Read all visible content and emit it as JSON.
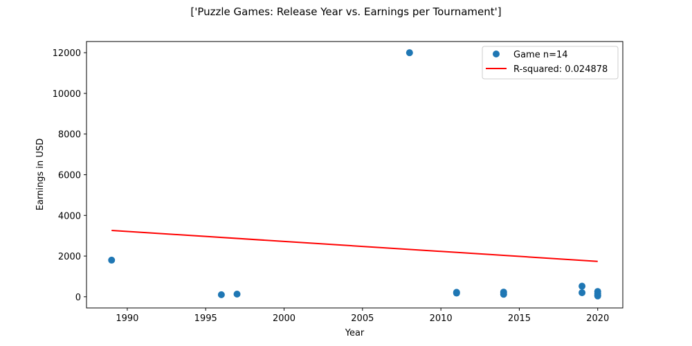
{
  "chart_data": {
    "type": "scatter",
    "title": "['Puzzle Games: Release Year vs. Earnings per Tournament']",
    "xlabel": "Year",
    "ylabel": "Earnings in USD",
    "xlim": [
      1987.4,
      2021.6
    ],
    "ylim": [
      -550,
      12550
    ],
    "xticks": [
      1990,
      1995,
      2000,
      2005,
      2010,
      2015,
      2020
    ],
    "yticks": [
      0,
      2000,
      4000,
      6000,
      8000,
      10000,
      12000
    ],
    "legend_position": "upper right",
    "grid": false,
    "series": [
      {
        "name": "Game n=14",
        "kind": "scatter",
        "color": "#1f77b4",
        "points": [
          {
            "x": 1989,
            "y": 1800
          },
          {
            "x": 1996,
            "y": 100
          },
          {
            "x": 1997,
            "y": 130
          },
          {
            "x": 2008,
            "y": 12000
          },
          {
            "x": 2011,
            "y": 220
          },
          {
            "x": 2011,
            "y": 180
          },
          {
            "x": 2014,
            "y": 230
          },
          {
            "x": 2014,
            "y": 120
          },
          {
            "x": 2019,
            "y": 520
          },
          {
            "x": 2019,
            "y": 200
          },
          {
            "x": 2020,
            "y": 260
          },
          {
            "x": 2020,
            "y": 160
          },
          {
            "x": 2020,
            "y": 90
          },
          {
            "x": 2020,
            "y": 40
          }
        ]
      },
      {
        "name": "R-squared: 0.024878",
        "kind": "line",
        "color": "#ff0000",
        "points": [
          {
            "x": 1989,
            "y": 3260
          },
          {
            "x": 2020,
            "y": 1740
          }
        ]
      }
    ]
  }
}
